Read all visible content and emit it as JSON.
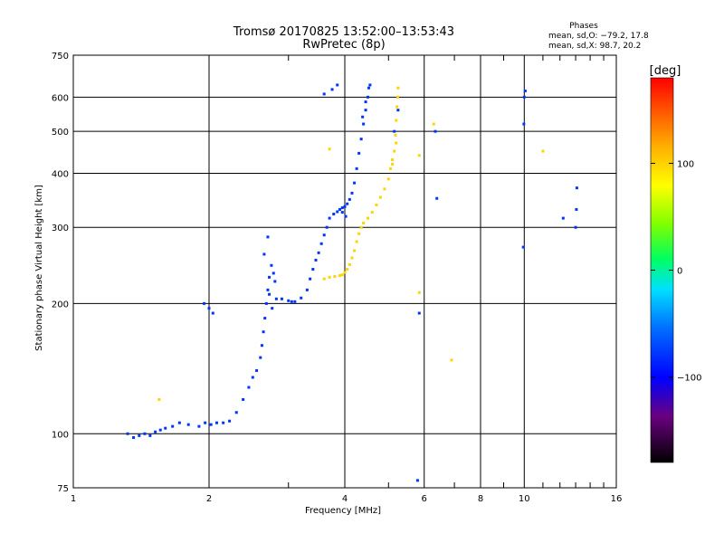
{
  "chart_data": {
    "type": "scatter",
    "title": "Tromsø 20170825 13:52:00–13:53:43",
    "subtitle": "RwPretec (8p)",
    "stats": {
      "title": "Phases",
      "line_o": "mean, sd,O: −79.2, 17.8",
      "line_x": "mean, sd,X:  98.7, 20.2"
    },
    "xlabel": "Frequency [MHz]",
    "ylabel": "Stationary phase Virtual Height [km]",
    "xscale": "log",
    "yscale": "log",
    "xlim": [
      1,
      16
    ],
    "ylim": [
      75,
      750
    ],
    "xticks": [
      1,
      2,
      4,
      6,
      8,
      10,
      16
    ],
    "xtick_labels": [
      "1",
      "2",
      "4",
      "6",
      "8",
      "10",
      "16"
    ],
    "xminor": [
      3,
      5,
      7,
      9,
      11,
      12,
      13,
      14,
      15
    ],
    "xgrid": [
      2,
      4,
      6,
      8,
      10
    ],
    "yticks": [
      75,
      100,
      200,
      300,
      400,
      500,
      600,
      750
    ],
    "ytick_labels": [
      "75",
      "100",
      "200",
      "300",
      "400",
      "500",
      "600",
      "750"
    ],
    "ygrid": [
      100,
      200,
      300,
      400,
      500,
      600
    ],
    "grid": true,
    "colorbar": {
      "label": "[deg]",
      "range": [
        -180,
        180
      ],
      "ticks": [
        -100,
        0,
        100
      ],
      "tick_labels": [
        "−100",
        "0",
        "100"
      ]
    },
    "series": [
      {
        "mode": "O",
        "mean_phase": -79.2,
        "points": [
          [
            1.32,
            100
          ],
          [
            1.36,
            98
          ],
          [
            1.4,
            99
          ],
          [
            1.44,
            100
          ],
          [
            1.48,
            99
          ],
          [
            1.52,
            101
          ],
          [
            1.56,
            102
          ],
          [
            1.6,
            103
          ],
          [
            1.66,
            104
          ],
          [
            1.72,
            106
          ],
          [
            1.8,
            105
          ],
          [
            1.9,
            104
          ],
          [
            1.96,
            106
          ],
          [
            2.02,
            105
          ],
          [
            2.08,
            106
          ],
          [
            2.15,
            106
          ],
          [
            2.22,
            107
          ],
          [
            2.3,
            112
          ],
          [
            2.38,
            120
          ],
          [
            2.45,
            128
          ],
          [
            2.5,
            135
          ],
          [
            2.55,
            140
          ],
          [
            2.6,
            150
          ],
          [
            2.62,
            160
          ],
          [
            2.64,
            172
          ],
          [
            2.66,
            185
          ],
          [
            2.68,
            200
          ],
          [
            2.7,
            215
          ],
          [
            2.72,
            230
          ],
          [
            2.75,
            245
          ],
          [
            2.78,
            235
          ],
          [
            2.8,
            225
          ],
          [
            2.72,
            210
          ],
          [
            2.76,
            195
          ],
          [
            2.82,
            205
          ],
          [
            2.65,
            260
          ],
          [
            2.7,
            285
          ],
          [
            1.95,
            200
          ],
          [
            2.0,
            195
          ],
          [
            2.04,
            190
          ],
          [
            2.9,
            205
          ],
          [
            3.0,
            203
          ],
          [
            3.05,
            202
          ],
          [
            3.1,
            202
          ],
          [
            3.2,
            206
          ],
          [
            3.3,
            215
          ],
          [
            3.35,
            228
          ],
          [
            3.4,
            240
          ],
          [
            3.45,
            252
          ],
          [
            3.5,
            262
          ],
          [
            3.55,
            275
          ],
          [
            3.6,
            288
          ],
          [
            3.65,
            300
          ],
          [
            3.7,
            315
          ],
          [
            3.78,
            322
          ],
          [
            3.85,
            326
          ],
          [
            3.9,
            330
          ],
          [
            3.95,
            333
          ],
          [
            4.0,
            335
          ],
          [
            4.05,
            340
          ],
          [
            4.1,
            348
          ],
          [
            4.15,
            360
          ],
          [
            4.2,
            380
          ],
          [
            4.25,
            410
          ],
          [
            4.3,
            445
          ],
          [
            4.35,
            480
          ],
          [
            4.4,
            520
          ],
          [
            4.45,
            560
          ],
          [
            4.5,
            600
          ],
          [
            4.52,
            630
          ],
          [
            4.55,
            640
          ],
          [
            4.45,
            585
          ],
          [
            4.38,
            540
          ],
          [
            3.95,
            325
          ],
          [
            4.02,
            318
          ],
          [
            3.6,
            610
          ],
          [
            3.75,
            625
          ],
          [
            3.85,
            640
          ],
          [
            5.8,
            78
          ],
          [
            9.95,
            270
          ],
          [
            9.98,
            520
          ],
          [
            10.0,
            600
          ],
          [
            10.05,
            620
          ],
          [
            12.2,
            315
          ],
          [
            13.0,
            300
          ],
          [
            13.05,
            330
          ],
          [
            13.08,
            370
          ],
          [
            5.85,
            190
          ],
          [
            6.35,
            500
          ],
          [
            5.15,
            500
          ],
          [
            5.25,
            560
          ],
          [
            6.4,
            350
          ]
        ]
      },
      {
        "mode": "X",
        "mean_phase": 98.7,
        "points": [
          [
            3.6,
            228
          ],
          [
            3.7,
            230
          ],
          [
            3.8,
            231
          ],
          [
            3.9,
            232
          ],
          [
            3.95,
            233
          ],
          [
            4.0,
            236
          ],
          [
            4.05,
            240
          ],
          [
            4.1,
            246
          ],
          [
            4.15,
            255
          ],
          [
            4.2,
            265
          ],
          [
            4.25,
            278
          ],
          [
            4.3,
            290
          ],
          [
            4.35,
            300
          ],
          [
            4.4,
            307
          ],
          [
            4.5,
            315
          ],
          [
            4.6,
            325
          ],
          [
            4.7,
            338
          ],
          [
            4.8,
            352
          ],
          [
            4.9,
            368
          ],
          [
            5.0,
            388
          ],
          [
            5.05,
            410
          ],
          [
            5.1,
            430
          ],
          [
            5.15,
            450
          ],
          [
            5.18,
            490
          ],
          [
            5.2,
            530
          ],
          [
            5.22,
            570
          ],
          [
            5.24,
            600
          ],
          [
            5.25,
            630
          ],
          [
            5.2,
            470
          ],
          [
            5.1,
            420
          ],
          [
            1.55,
            120
          ],
          [
            6.9,
            148
          ],
          [
            5.85,
            212
          ],
          [
            5.85,
            440
          ],
          [
            11.0,
            450
          ],
          [
            3.7,
            455
          ],
          [
            6.3,
            520
          ]
        ]
      }
    ]
  }
}
